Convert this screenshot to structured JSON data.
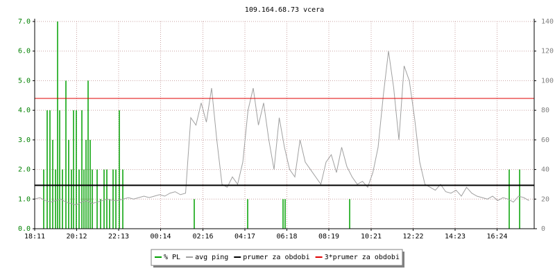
{
  "chart_data": {
    "type": "line",
    "title": "109.164.68.73 vcera",
    "xlim": [
      0,
      1440
    ],
    "xticks": [
      {
        "value": 0,
        "label": "18:11"
      },
      {
        "value": 121,
        "label": "20:12"
      },
      {
        "value": 242,
        "label": "22:13"
      },
      {
        "value": 363,
        "label": "00:14"
      },
      {
        "value": 485,
        "label": "02:16"
      },
      {
        "value": 606,
        "label": "04:17"
      },
      {
        "value": 727,
        "label": "06:18"
      },
      {
        "value": 848,
        "label": "08:19"
      },
      {
        "value": 970,
        "label": "10:21"
      },
      {
        "value": 1091,
        "label": "12:22"
      },
      {
        "value": 1212,
        "label": "14:23"
      },
      {
        "value": 1333,
        "label": "16:24"
      }
    ],
    "ylim": [
      0,
      7
    ],
    "yticks": [
      {
        "value": 0,
        "label": "0.0"
      },
      {
        "value": 1,
        "label": "1.0"
      },
      {
        "value": 2,
        "label": "2.0"
      },
      {
        "value": 3,
        "label": "3.0"
      },
      {
        "value": 4,
        "label": "4.0"
      },
      {
        "value": 5,
        "label": "5.0"
      },
      {
        "value": 6,
        "label": "6.0"
      },
      {
        "value": 7,
        "label": "7.0"
      }
    ],
    "y2lim": [
      0,
      140
    ],
    "y2ticks": [
      0,
      20,
      40,
      60,
      80,
      100,
      120,
      140
    ],
    "grid": true,
    "series": [
      {
        "name": "% PL",
        "color": "#00a000",
        "style": "bars",
        "x": [
          26,
          36,
          44,
          52,
          60,
          66,
          72,
          80,
          90,
          98,
          106,
          112,
          120,
          128,
          136,
          142,
          148,
          154,
          160,
          166,
          180,
          190,
          200,
          208,
          216,
          226,
          234,
          244,
          254,
          460,
          614,
          716,
          722,
          908,
          1368,
          1398
        ],
        "values": [
          2,
          4,
          4,
          3,
          2,
          7,
          4,
          2,
          5,
          3,
          2,
          4,
          4,
          2,
          4,
          2,
          3,
          5,
          3,
          2,
          2,
          1,
          2,
          2,
          1,
          2,
          2,
          4,
          2,
          1,
          1,
          1,
          1,
          1,
          2,
          2
        ]
      },
      {
        "name": "avg ping",
        "color": "#a0a0a0",
        "style": "line",
        "axis": "y2",
        "x": [
          0,
          15,
          30,
          45,
          60,
          75,
          90,
          105,
          120,
          135,
          150,
          165,
          180,
          195,
          210,
          225,
          240,
          255,
          270,
          285,
          300,
          315,
          330,
          345,
          360,
          375,
          390,
          405,
          420,
          435,
          450,
          465,
          480,
          495,
          510,
          525,
          540,
          555,
          570,
          585,
          600,
          615,
          630,
          645,
          660,
          675,
          690,
          705,
          720,
          735,
          750,
          765,
          780,
          795,
          810,
          825,
          840,
          855,
          870,
          885,
          900,
          915,
          930,
          945,
          960,
          975,
          990,
          1005,
          1020,
          1035,
          1050,
          1065,
          1080,
          1095,
          1110,
          1125,
          1140,
          1155,
          1170,
          1185,
          1200,
          1215,
          1230,
          1245,
          1260,
          1275,
          1290,
          1305,
          1320,
          1335,
          1350,
          1365,
          1380,
          1395,
          1410,
          1425
        ],
        "values": [
          20,
          21,
          19,
          18,
          19,
          20,
          18,
          17,
          16,
          18,
          19,
          17,
          18,
          19,
          20,
          19,
          19,
          20,
          21,
          20,
          21,
          22,
          21,
          22,
          23,
          22,
          24,
          25,
          23,
          24,
          75,
          70,
          85,
          72,
          95,
          60,
          30,
          28,
          35,
          30,
          45,
          80,
          95,
          70,
          85,
          60,
          40,
          75,
          55,
          40,
          35,
          60,
          45,
          40,
          35,
          30,
          45,
          50,
          38,
          55,
          42,
          35,
          30,
          32,
          28,
          38,
          55,
          90,
          120,
          95,
          60,
          110,
          100,
          75,
          45,
          30,
          28,
          26,
          30,
          25,
          24,
          26,
          22,
          28,
          24,
          22,
          21,
          20,
          22,
          19,
          21,
          20,
          18,
          22,
          21,
          19
        ]
      },
      {
        "name": "prumer za obdobi",
        "color": "#000000",
        "style": "hline",
        "axis": "y2",
        "values": [
          29.3
        ]
      },
      {
        "name": "3*prumer za obdobi",
        "color": "#e00000",
        "style": "hline",
        "axis": "y2",
        "values": [
          88
        ]
      }
    ]
  }
}
